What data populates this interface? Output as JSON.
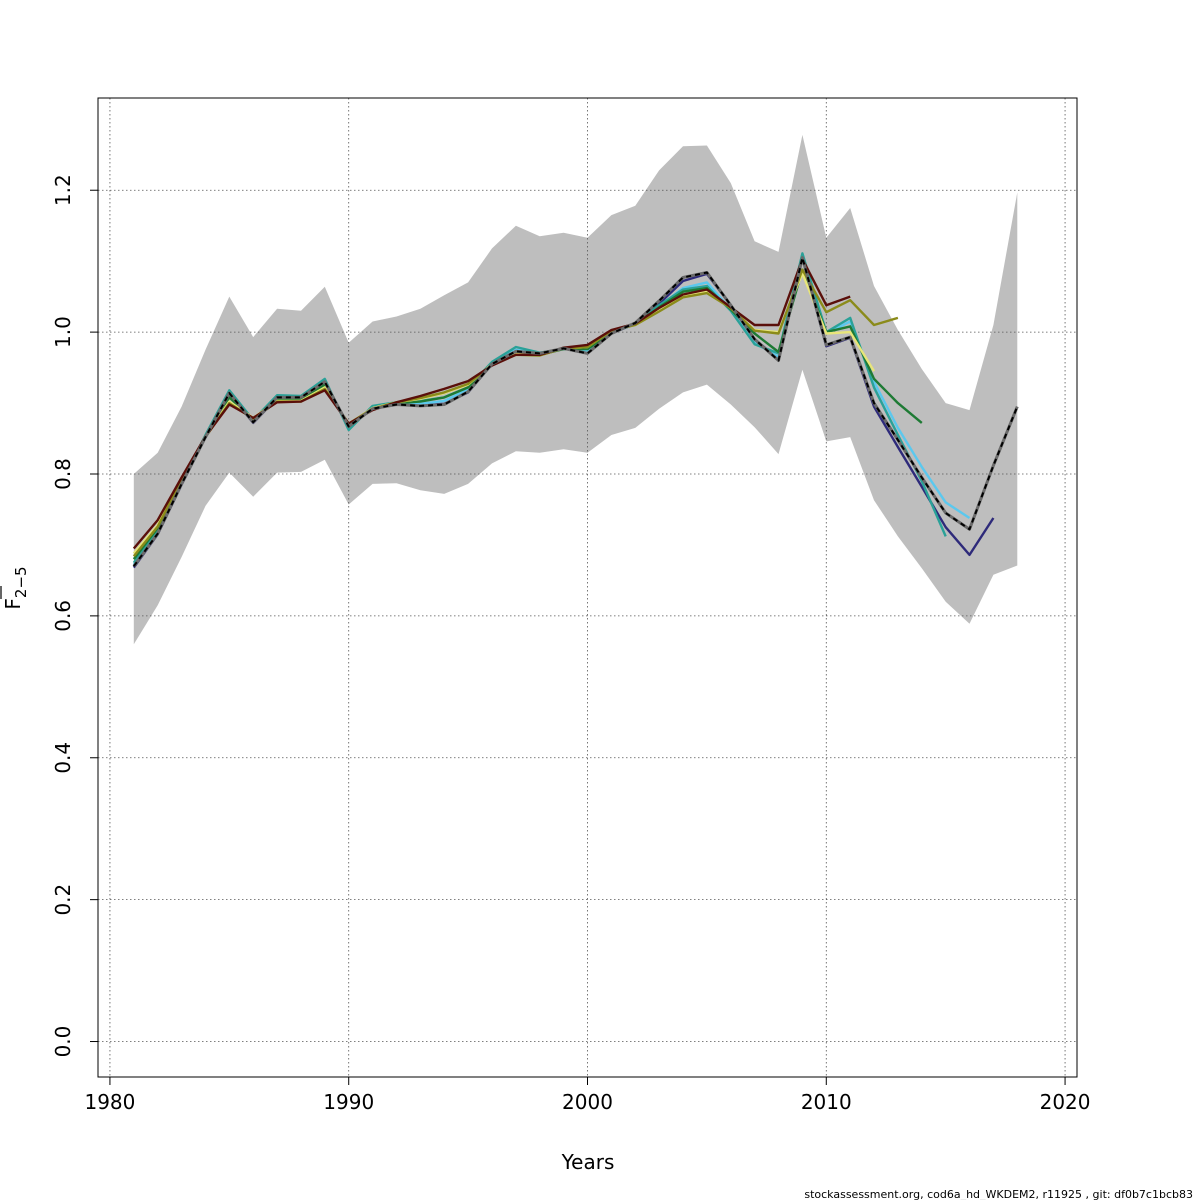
{
  "chart_data": {
    "type": "line",
    "title": "",
    "xlabel": "Years",
    "ylabel": "F",
    "ylabel_subscript": "2−5",
    "xlim": [
      1979.5,
      2020.5
    ],
    "ylim": [
      -0.05,
      1.33
    ],
    "xticks": [
      1980,
      1990,
      2000,
      2010,
      2020
    ],
    "yticks": [
      0.0,
      0.2,
      0.4,
      0.6,
      0.8,
      1.0,
      1.2
    ],
    "xtick_labels": [
      "1980",
      "1990",
      "2000",
      "2010",
      "2020"
    ],
    "ytick_labels": [
      "0.0",
      "0.2",
      "0.4",
      "0.6",
      "0.8",
      "1.0",
      "1.2"
    ],
    "grid": true,
    "confidence_band": {
      "color": "#bebebe",
      "x": [
        1981,
        1982,
        1983,
        1984,
        1985,
        1986,
        1987,
        1988,
        1989,
        1990,
        1991,
        1992,
        1993,
        1994,
        1995,
        1996,
        1997,
        1998,
        1999,
        2000,
        2001,
        2002,
        2003,
        2004,
        2005,
        2006,
        2007,
        2008,
        2009,
        2010,
        2011,
        2012,
        2013,
        2014,
        2015,
        2016,
        2017,
        2018
      ],
      "upper": [
        0.8,
        0.83,
        0.895,
        0.975,
        1.05,
        0.993,
        1.033,
        1.03,
        1.064,
        0.985,
        1.015,
        1.022,
        1.033,
        1.052,
        1.07,
        1.118,
        1.15,
        1.135,
        1.14,
        1.133,
        1.165,
        1.178,
        1.228,
        1.262,
        1.263,
        1.21,
        1.128,
        1.113,
        1.278,
        1.133,
        1.175,
        1.065,
        1.003,
        0.948,
        0.9,
        0.89,
        1.01,
        1.197
      ],
      "lower": [
        0.56,
        0.615,
        0.683,
        0.755,
        0.802,
        0.768,
        0.802,
        0.803,
        0.82,
        0.757,
        0.786,
        0.787,
        0.777,
        0.772,
        0.786,
        0.815,
        0.832,
        0.83,
        0.835,
        0.83,
        0.855,
        0.865,
        0.892,
        0.915,
        0.926,
        0.898,
        0.866,
        0.828,
        0.947,
        0.846,
        0.852,
        0.763,
        0.712,
        0.667,
        0.62,
        0.589,
        0.658,
        0.671
      ]
    },
    "series": [
      {
        "color": "#2e2a7a",
        "dash": false,
        "x": [
          1981,
          1982,
          1983,
          1984,
          1985,
          1986,
          1987,
          1988,
          1989,
          1990,
          1991,
          1992,
          1993,
          1994,
          1995,
          1996,
          1997,
          1998,
          1999,
          2000,
          2001,
          2002,
          2003,
          2004,
          2005,
          2006,
          2007,
          2008,
          2009,
          2010,
          2011,
          2012,
          2013,
          2014,
          2015,
          2016,
          2017
        ],
        "y": [
          0.668,
          0.715,
          0.785,
          0.852,
          0.913,
          0.872,
          0.907,
          0.907,
          0.929,
          0.868,
          0.892,
          0.898,
          0.897,
          0.899,
          0.915,
          0.955,
          0.972,
          0.97,
          0.977,
          0.97,
          0.998,
          1.012,
          1.04,
          1.072,
          1.082,
          1.038,
          0.99,
          0.962,
          1.105,
          0.98,
          0.992,
          0.895,
          0.838,
          0.782,
          0.725,
          0.686,
          0.738
        ]
      },
      {
        "color": "#5bc8ee",
        "dash": false,
        "x": [
          1981,
          1982,
          1983,
          1984,
          1985,
          1986,
          1987,
          1988,
          1989,
          1990,
          1991,
          1992,
          1993,
          1994,
          1995,
          1996,
          1997,
          1998,
          1999,
          2000,
          2001,
          2002,
          2003,
          2004,
          2005,
          2006,
          2007,
          2008,
          2009,
          2010,
          2011,
          2012,
          2013,
          2014,
          2015,
          2016
        ],
        "y": [
          0.672,
          0.718,
          0.787,
          0.853,
          0.915,
          0.874,
          0.908,
          0.908,
          0.931,
          0.866,
          0.894,
          0.899,
          0.899,
          0.903,
          0.919,
          0.957,
          0.975,
          0.97,
          0.977,
          0.973,
          0.999,
          1.011,
          1.036,
          1.062,
          1.07,
          1.032,
          0.985,
          0.965,
          1.11,
          0.998,
          1.015,
          0.93,
          0.865,
          0.81,
          0.76,
          0.738
        ]
      },
      {
        "color": "#2aa198",
        "dash": false,
        "x": [
          1981,
          1982,
          1983,
          1984,
          1985,
          1986,
          1987,
          1988,
          1989,
          1990,
          1991,
          1992,
          1993,
          1994,
          1995,
          1996,
          1997,
          1998,
          1999,
          2000,
          2001,
          2002,
          2003,
          2004,
          2005,
          2006,
          2007,
          2008,
          2009,
          2010,
          2011,
          2012,
          2013,
          2014,
          2015
        ],
        "y": [
          0.675,
          0.72,
          0.788,
          0.855,
          0.918,
          0.876,
          0.911,
          0.91,
          0.934,
          0.862,
          0.896,
          0.901,
          0.903,
          0.908,
          0.922,
          0.958,
          0.979,
          0.971,
          0.976,
          0.976,
          1.0,
          1.011,
          1.038,
          1.06,
          1.065,
          1.03,
          0.983,
          0.97,
          1.111,
          1.0,
          1.02,
          0.922,
          0.855,
          0.79,
          0.712
        ]
      },
      {
        "color": "#1e7a34",
        "dash": false,
        "x": [
          1981,
          1982,
          1983,
          1984,
          1985,
          1986,
          1987,
          1988,
          1989,
          1990,
          1991,
          1992,
          1993,
          1994,
          1995,
          1996,
          1997,
          1998,
          1999,
          2000,
          2001,
          2002,
          2003,
          2004,
          2005,
          2006,
          2007,
          2008,
          2009,
          2010,
          2011,
          2012,
          2013,
          2014
        ],
        "y": [
          0.68,
          0.724,
          0.79,
          0.853,
          0.908,
          0.877,
          0.906,
          0.905,
          0.926,
          0.868,
          0.893,
          0.9,
          0.902,
          0.908,
          0.922,
          0.955,
          0.97,
          0.968,
          0.976,
          0.976,
          1.0,
          1.011,
          1.035,
          1.057,
          1.062,
          1.032,
          0.998,
          0.972,
          1.088,
          1.0,
          1.008,
          0.934,
          0.9,
          0.872
        ]
      },
      {
        "color": "#e8e57a",
        "dash": false,
        "x": [
          1981,
          1982,
          1983,
          1984,
          1985,
          1986,
          1987,
          1988,
          1989,
          1990,
          1991,
          1992,
          1993,
          1994,
          1995,
          1996,
          1997,
          1998,
          1999,
          2000,
          2001,
          2002,
          2003,
          2004,
          2005,
          2006,
          2007,
          2008,
          2009,
          2010,
          2011,
          2012
        ],
        "y": [
          0.688,
          0.728,
          0.792,
          0.853,
          0.902,
          0.879,
          0.903,
          0.903,
          0.922,
          0.87,
          0.893,
          0.901,
          0.906,
          0.914,
          0.926,
          0.955,
          0.969,
          0.968,
          0.977,
          0.979,
          1.002,
          1.01,
          1.03,
          1.05,
          1.057,
          1.034,
          1.003,
          1.0,
          1.083,
          0.998,
          1.0,
          0.945
        ]
      },
      {
        "color": "#8b8b1a",
        "dash": false,
        "x": [
          1981,
          1982,
          1983,
          1984,
          1985,
          1986,
          1987,
          1988,
          1989,
          1990,
          1991,
          1992,
          1993,
          1994,
          1995,
          1996,
          1997,
          1998,
          1999,
          2000,
          2001,
          2002,
          2003,
          2004,
          2005,
          2006,
          2007,
          2008,
          2009,
          2010,
          2011,
          2012,
          2013
        ],
        "y": [
          0.684,
          0.726,
          0.791,
          0.852,
          0.9,
          0.878,
          0.902,
          0.902,
          0.92,
          0.871,
          0.892,
          0.901,
          0.907,
          0.915,
          0.927,
          0.954,
          0.968,
          0.967,
          0.977,
          0.979,
          1.002,
          1.01,
          1.029,
          1.049,
          1.055,
          1.034,
          1.002,
          0.998,
          1.088,
          1.028,
          1.045,
          1.01,
          1.02
        ]
      },
      {
        "color": "#5a0f0a",
        "dash": false,
        "x": [
          1981,
          1982,
          1983,
          1984,
          1985,
          1986,
          1987,
          1988,
          1989,
          1990,
          1991,
          1992,
          1993,
          1994,
          1995,
          1996,
          1997,
          1998,
          1999,
          2000,
          2001,
          2002,
          2003,
          2004,
          2005,
          2006,
          2007,
          2008,
          2009,
          2010,
          2011
        ],
        "y": [
          0.695,
          0.735,
          0.795,
          0.853,
          0.898,
          0.879,
          0.901,
          0.902,
          0.918,
          0.871,
          0.89,
          0.901,
          0.91,
          0.92,
          0.931,
          0.953,
          0.968,
          0.968,
          0.978,
          0.982,
          1.003,
          1.012,
          1.034,
          1.053,
          1.06,
          1.035,
          1.01,
          1.01,
          1.103,
          1.038,
          1.05
        ]
      },
      {
        "color": "#000000",
        "dash": true,
        "x": [
          1981,
          1982,
          1983,
          1984,
          1985,
          1986,
          1987,
          1988,
          1989,
          1990,
          1991,
          1992,
          1993,
          1994,
          1995,
          1996,
          1997,
          1998,
          1999,
          2000,
          2001,
          2002,
          2003,
          2004,
          2005,
          2006,
          2007,
          2008,
          2009,
          2010,
          2011,
          2012,
          2013,
          2014,
          2015,
          2016,
          2017,
          2018
        ],
        "y": [
          0.67,
          0.716,
          0.786,
          0.852,
          0.914,
          0.873,
          0.908,
          0.908,
          0.93,
          0.867,
          0.892,
          0.898,
          0.896,
          0.898,
          0.916,
          0.955,
          0.973,
          0.97,
          0.977,
          0.97,
          0.998,
          1.013,
          1.044,
          1.077,
          1.084,
          1.038,
          0.99,
          0.96,
          1.105,
          0.982,
          0.993,
          0.9,
          0.848,
          0.795,
          0.745,
          0.722,
          0.812,
          0.895
        ]
      }
    ]
  },
  "footer": "stockassessment.org, cod6a_hd_WKDEM2, r11925 , git: df0b7c1bcb83"
}
